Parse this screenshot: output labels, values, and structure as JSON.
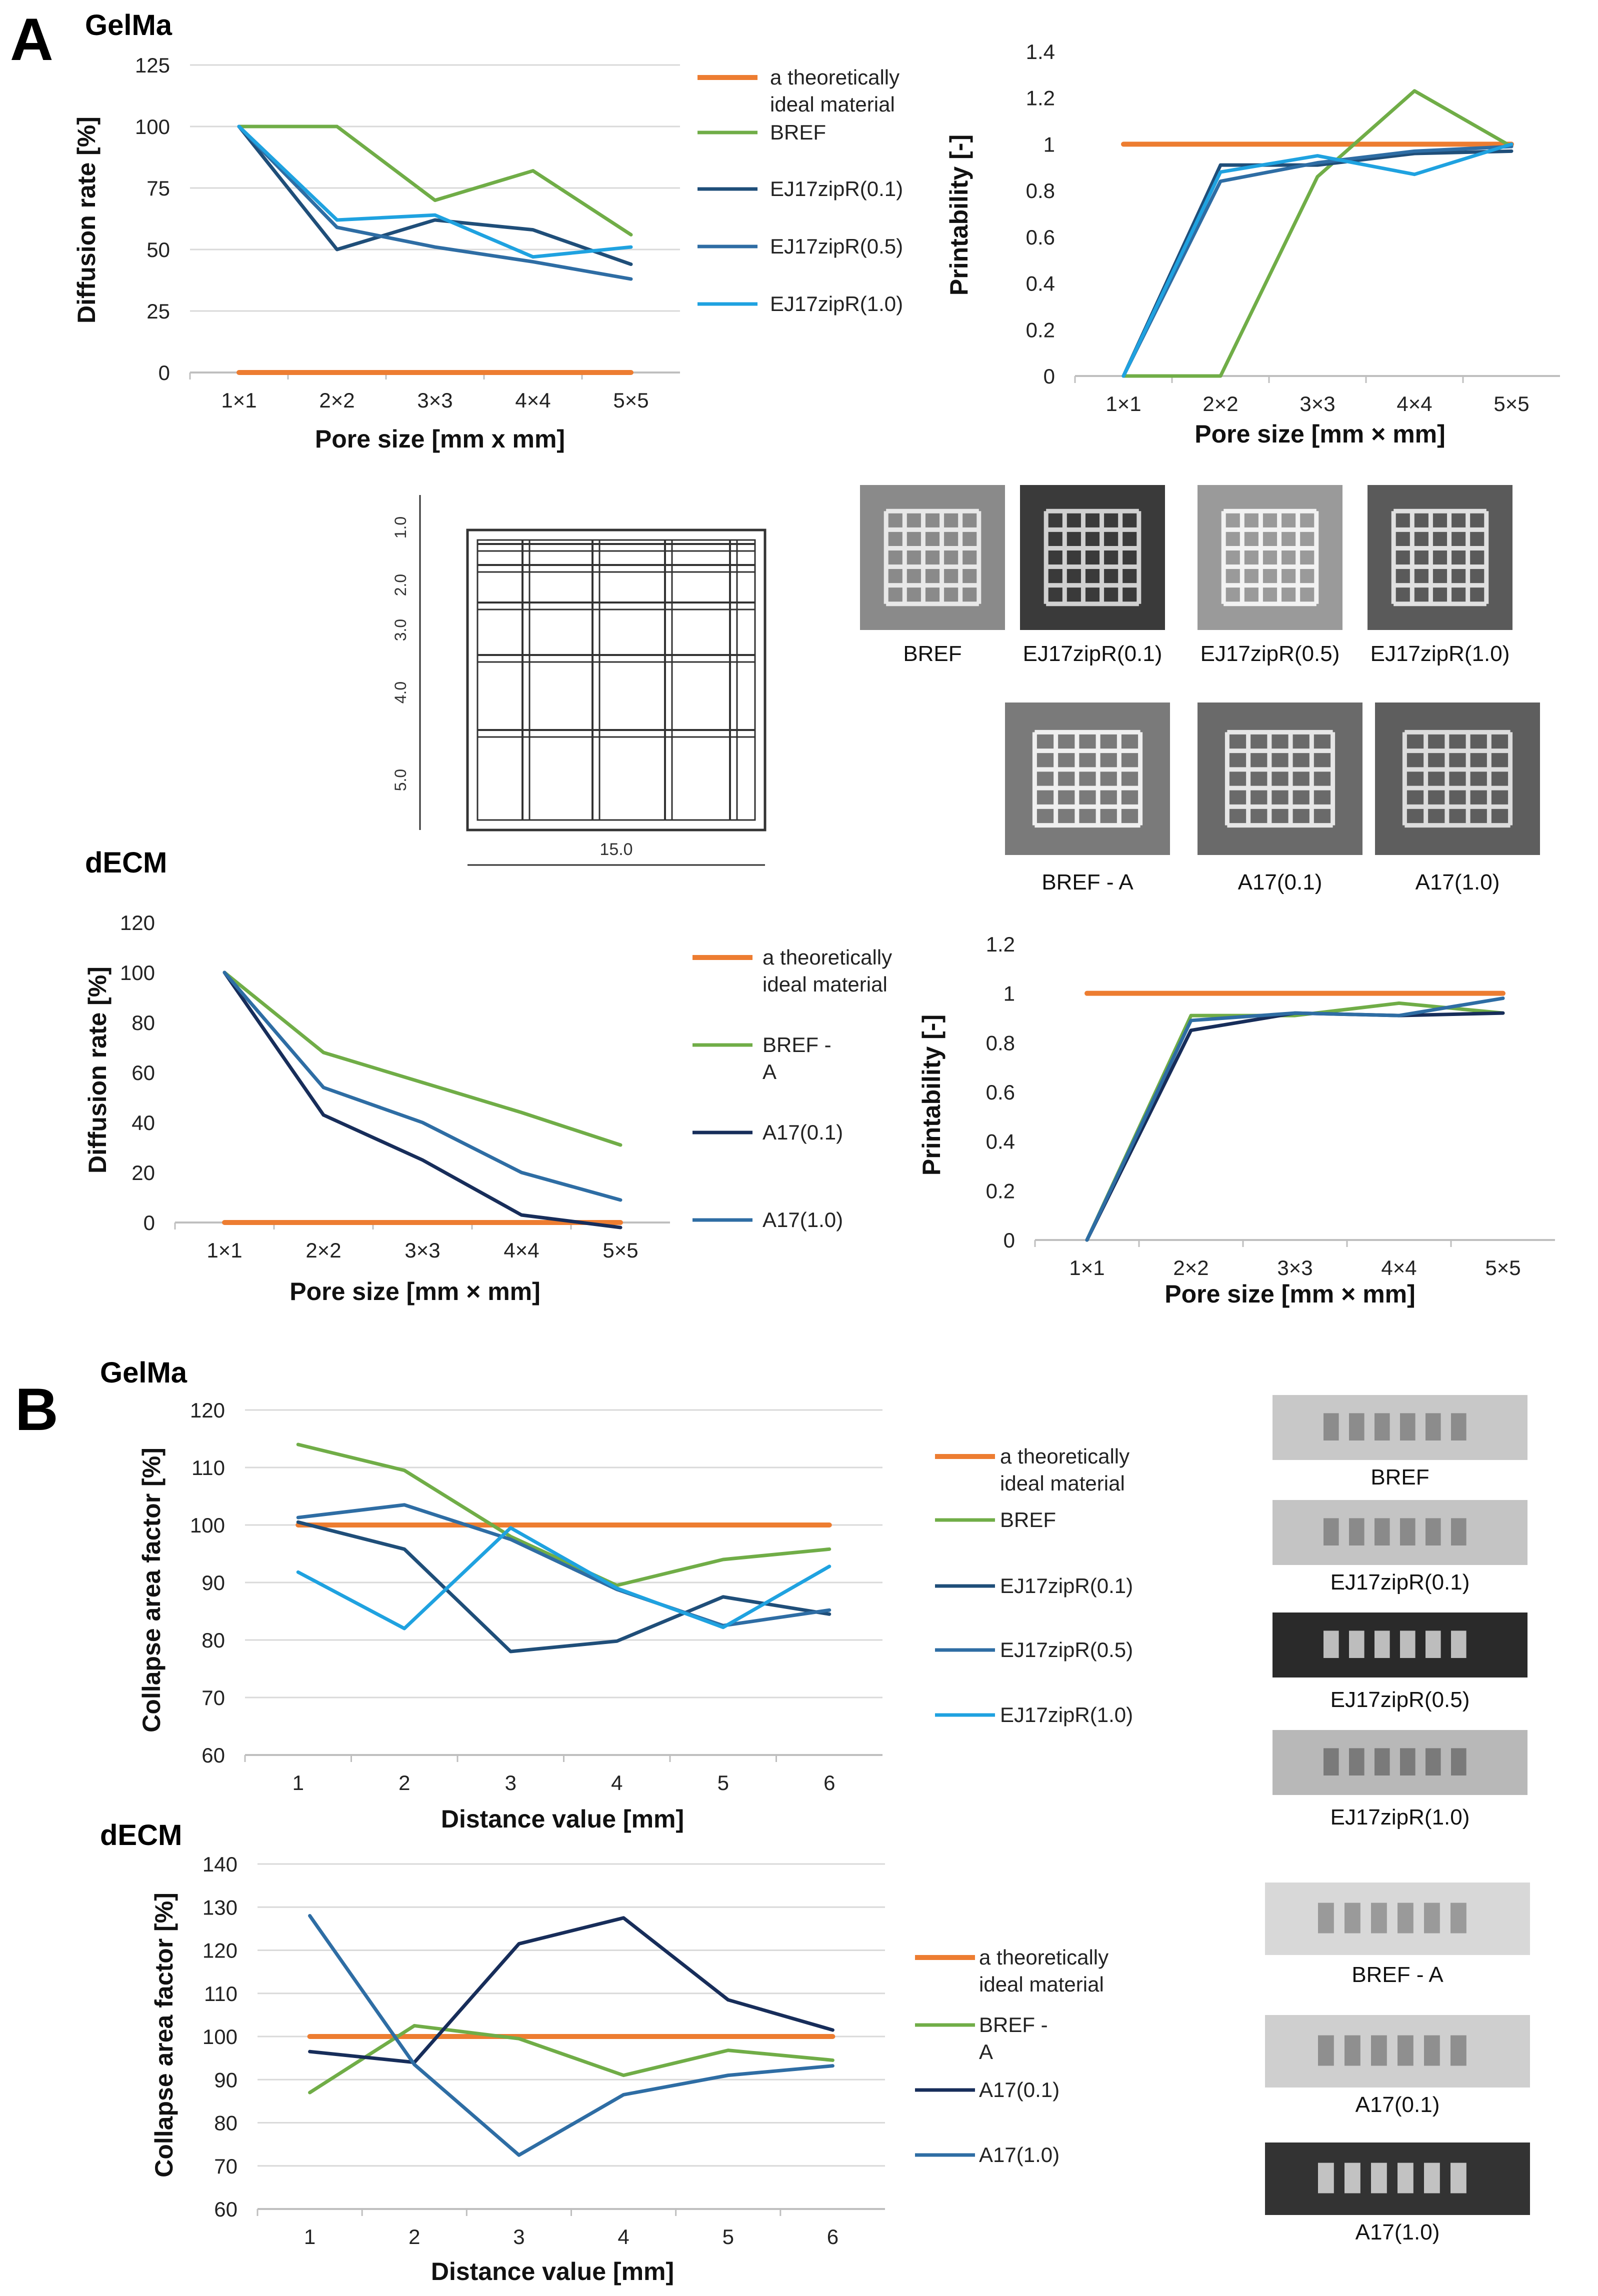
{
  "panels": {
    "a": "A",
    "b": "B"
  },
  "colors": {
    "ideal": "#ED7D31",
    "green": "#70AD47",
    "navy": "#172D5A",
    "dark": "#1F4E79",
    "mid": "#2E6DA4",
    "light": "#1FA2E0",
    "grid": "#D9D9D9",
    "axis": "#BFBFBF"
  },
  "chart_data": [
    {
      "id": "a_gelma_diff",
      "type": "line",
      "title": "GelMa",
      "categories": [
        "1×1",
        "2×2",
        "3×3",
        "4×4",
        "5×5"
      ],
      "xlabel": "Pore size [mm x mm]",
      "ylabel": "Diffusion rate [%]",
      "ylim": [
        0,
        125
      ],
      "yticks": [
        "0",
        "25",
        "50",
        "75",
        "100",
        "125"
      ],
      "grid": true,
      "legend": [
        "a theoretically ideal material",
        "BREF",
        "EJ17zipR(0.1)",
        "EJ17zipR(0.5)",
        "EJ17zipR(1.0)"
      ],
      "series": [
        {
          "name": "a theoretically ideal material",
          "color": "#ED7D31",
          "values": [
            0,
            0,
            0,
            0,
            0
          ]
        },
        {
          "name": "BREF",
          "color": "#70AD47",
          "values": [
            100,
            100,
            70,
            82,
            56
          ]
        },
        {
          "name": "EJ17zipR(0.1)",
          "color": "#1F4E79",
          "values": [
            100,
            50,
            62,
            58,
            44
          ]
        },
        {
          "name": "EJ17zipR(0.5)",
          "color": "#2E6DA4",
          "values": [
            100,
            59,
            51,
            45,
            38
          ]
        },
        {
          "name": "EJ17zipR(1.0)",
          "color": "#1FA2E0",
          "values": [
            100,
            62,
            64,
            47,
            51
          ]
        }
      ]
    },
    {
      "id": "a_gelma_print",
      "type": "line",
      "categories": [
        "1×1",
        "2×2",
        "3×3",
        "4×4",
        "5×5"
      ],
      "xlabel": "Pore size [mm × mm]",
      "ylabel": "Printability [-]",
      "ylim": [
        0,
        1.4
      ],
      "yticks": [
        "0",
        "0.2",
        "0.4",
        "0.6",
        "0.8",
        "1",
        "1.2",
        "1.4"
      ],
      "grid": false,
      "series": [
        {
          "name": "a theoretically ideal material",
          "color": "#ED7D31",
          "values": [
            1,
            1,
            1,
            1,
            1
          ]
        },
        {
          "name": "BREF",
          "color": "#70AD47",
          "values": [
            0,
            0,
            0.86,
            1.23,
            0.99
          ]
        },
        {
          "name": "EJ17zipR(0.1)",
          "color": "#1F4E79",
          "values": [
            0,
            0.91,
            0.91,
            0.96,
            0.97
          ]
        },
        {
          "name": "EJ17zipR(0.5)",
          "color": "#2E6DA4",
          "values": [
            0,
            0.84,
            0.92,
            0.97,
            0.99
          ]
        },
        {
          "name": "EJ17zipR(1.0)",
          "color": "#1FA2E0",
          "values": [
            0,
            0.88,
            0.95,
            0.87,
            1.0
          ]
        }
      ]
    },
    {
      "id": "a_decm_diff",
      "type": "line",
      "title": "dECM",
      "categories": [
        "1×1",
        "2×2",
        "3×3",
        "4×4",
        "5×5"
      ],
      "xlabel": "Pore size [mm × mm]",
      "ylabel": "Diffusion rate [%]",
      "ylim": [
        0,
        120
      ],
      "yticks": [
        "0",
        "20",
        "40",
        "60",
        "80",
        "100",
        "120"
      ],
      "grid": false,
      "legend": [
        "a theoretically ideal material",
        "BREF - A",
        "A17(0.1)",
        "A17(1.0)"
      ],
      "series": [
        {
          "name": "a theoretically ideal material",
          "color": "#ED7D31",
          "values": [
            0,
            0,
            0,
            0,
            0
          ]
        },
        {
          "name": "BREF - A",
          "color": "#70AD47",
          "values": [
            100,
            68,
            56,
            44,
            31
          ]
        },
        {
          "name": "A17(0.1)",
          "color": "#172D5A",
          "values": [
            100,
            43,
            25,
            3,
            -2
          ]
        },
        {
          "name": "A17(1.0)",
          "color": "#2E6DA4",
          "values": [
            100,
            54,
            40,
            20,
            9
          ]
        }
      ]
    },
    {
      "id": "a_decm_print",
      "type": "line",
      "categories": [
        "1×1",
        "2×2",
        "3×3",
        "4×4",
        "5×5"
      ],
      "xlabel": "Pore size [mm × mm]",
      "ylabel": "Printability [-]",
      "ylim": [
        0,
        1.2
      ],
      "yticks": [
        "0",
        "0.2",
        "0.4",
        "0.6",
        "0.8",
        "1",
        "1.2"
      ],
      "grid": false,
      "series": [
        {
          "name": "a theoretically ideal material",
          "color": "#ED7D31",
          "values": [
            1,
            1,
            1,
            1,
            1
          ]
        },
        {
          "name": "BREF - A",
          "color": "#70AD47",
          "values": [
            0,
            0.91,
            0.91,
            0.96,
            0.92
          ]
        },
        {
          "name": "A17(0.1)",
          "color": "#172D5A",
          "values": [
            0,
            0.85,
            0.92,
            0.91,
            0.92
          ]
        },
        {
          "name": "A17(1.0)",
          "color": "#2E6DA4",
          "values": [
            0,
            0.89,
            0.92,
            0.91,
            0.98
          ]
        }
      ]
    },
    {
      "id": "b_gelma_collapse",
      "type": "line",
      "title": "GelMa",
      "categories": [
        "1",
        "2",
        "3",
        "4",
        "5",
        "6"
      ],
      "xlabel": "Distance value [mm]",
      "ylabel": "Collapse area factor [%]",
      "ylim": [
        60,
        120
      ],
      "yticks": [
        "60",
        "70",
        "80",
        "90",
        "100",
        "110",
        "120"
      ],
      "grid": true,
      "legend": [
        "a theoretically ideal material",
        "BREF",
        "EJ17zipR(0.1)",
        "EJ17zipR(0.5)",
        "EJ17zipR(1.0)"
      ],
      "series": [
        {
          "name": "a theoretically ideal material",
          "color": "#ED7D31",
          "values": [
            100,
            100,
            100,
            100,
            100,
            100
          ]
        },
        {
          "name": "BREF",
          "color": "#70AD47",
          "values": [
            114,
            109.5,
            98,
            89.5,
            94,
            95.8
          ]
        },
        {
          "name": "EJ17zipR(0.1)",
          "color": "#1F4E79",
          "values": [
            100.5,
            95.8,
            78,
            79.8,
            87.5,
            84.5
          ]
        },
        {
          "name": "EJ17zipR(0.5)",
          "color": "#2E6DA4",
          "values": [
            101.3,
            103.5,
            97.5,
            88.8,
            82.5,
            85.2
          ]
        },
        {
          "name": "EJ17zipR(1.0)",
          "color": "#1FA2E0",
          "values": [
            91.8,
            82,
            99.5,
            89,
            82.2,
            92.8
          ]
        }
      ]
    },
    {
      "id": "b_decm_collapse",
      "type": "line",
      "title": "dECM",
      "categories": [
        "1",
        "2",
        "3",
        "4",
        "5",
        "6"
      ],
      "xlabel": "Distance value [mm]",
      "ylabel": "Collapse area factor [%]",
      "ylim": [
        60,
        140
      ],
      "yticks": [
        "60",
        "70",
        "80",
        "90",
        "100",
        "110",
        "120",
        "130",
        "140"
      ],
      "grid": true,
      "legend": [
        "a theoretically ideal material",
        "BREF - A",
        "A17(0.1)",
        "A17(1.0)"
      ],
      "series": [
        {
          "name": "a theoretically ideal material",
          "color": "#ED7D31",
          "values": [
            100,
            100,
            100,
            100,
            100,
            100
          ]
        },
        {
          "name": "BREF - A",
          "color": "#70AD47",
          "values": [
            87,
            102.5,
            99.5,
            91,
            96.8,
            94.5
          ]
        },
        {
          "name": "A17(0.1)",
          "color": "#172D5A",
          "values": [
            96.5,
            94,
            121.5,
            127.5,
            108.5,
            101.5
          ]
        },
        {
          "name": "A17(1.0)",
          "color": "#2E6DA4",
          "values": [
            128,
            93.5,
            72.5,
            86.5,
            91,
            93.2
          ]
        }
      ]
    }
  ],
  "drawing": {
    "dims": [
      "1.0",
      "2.0",
      "3.0",
      "4.0",
      "5.0"
    ],
    "width": "15.0"
  },
  "photos_top": [
    {
      "label": "BREF",
      "shade": "#8a8a8a",
      "line": "#e8e8e8"
    },
    {
      "label": "EJ17zipR(0.1)",
      "shade": "#3a3a3a",
      "line": "#d0d0d0"
    },
    {
      "label": "EJ17zipR(0.5)",
      "shade": "#9a9a9a",
      "line": "#f2f2f2"
    },
    {
      "label": "EJ17zipR(1.0)",
      "shade": "#5a5a5a",
      "line": "#e0e0e0"
    }
  ],
  "photos_bottom": [
    {
      "label": "BREF - A",
      "shade": "#7a7a7a",
      "line": "#efefef"
    },
    {
      "label": "A17(0.1)",
      "shade": "#6a6a6a",
      "line": "#e6e6e6"
    },
    {
      "label": "A17(1.0)",
      "shade": "#5e5e5e",
      "line": "#dcdcdc"
    }
  ],
  "side_gelma": [
    {
      "label": "BREF",
      "bg": "#c8c8c8",
      "fg": "#8c8c8c"
    },
    {
      "label": "EJ17zipR(0.1)",
      "bg": "#c4c4c4",
      "fg": "#8a8a8a"
    },
    {
      "label": "EJ17zipR(0.5)",
      "bg": "#2a2a2a",
      "fg": "#bdbdbd"
    },
    {
      "label": "EJ17zipR(1.0)",
      "bg": "#b8b8b8",
      "fg": "#7a7a7a"
    }
  ],
  "side_decm": [
    {
      "label": "BREF  - A",
      "bg": "#d8d8d8",
      "fg": "#9a9a9a"
    },
    {
      "label": "A17(0.1)",
      "bg": "#cfcfcf",
      "fg": "#8f8f8f"
    },
    {
      "label": "A17(1.0)",
      "bg": "#333333",
      "fg": "#c2c2c2"
    }
  ]
}
